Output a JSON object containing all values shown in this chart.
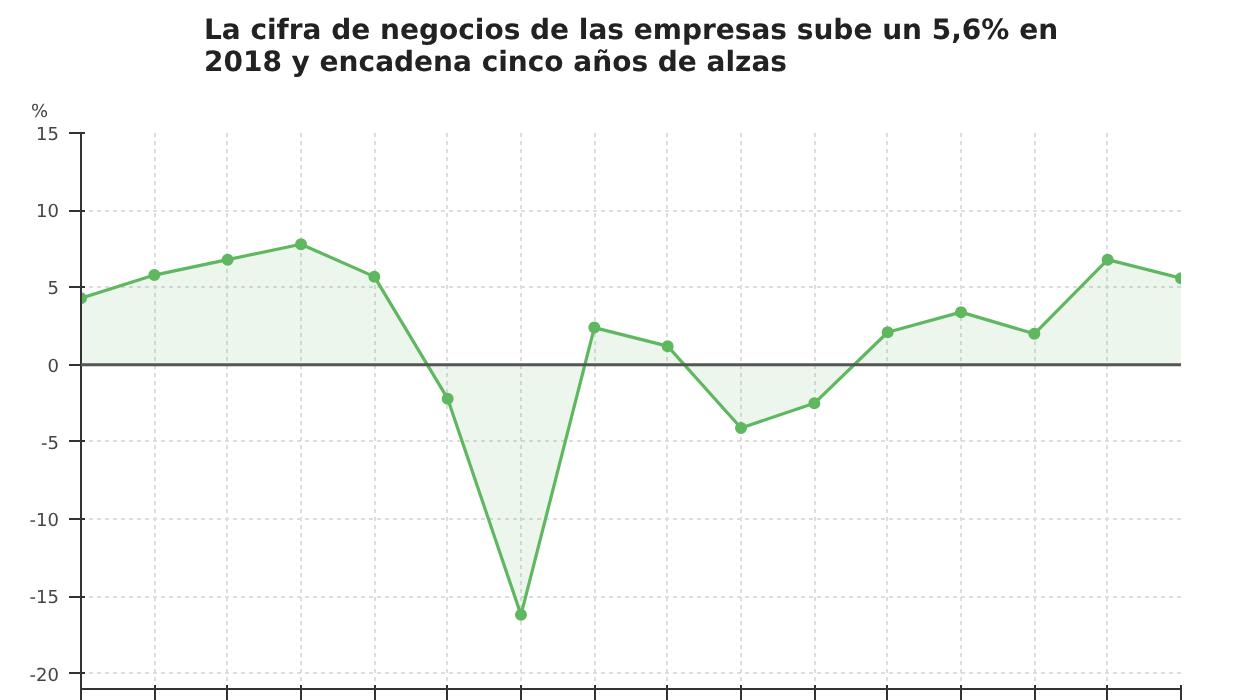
{
  "chart_data": {
    "type": "area",
    "title": "La cifra de negocios de las empresas sube un 5,6% en 2018 y encadena cinco años de alzas",
    "ylabel": "%",
    "categories": [
      null,
      null,
      null,
      null,
      null,
      null,
      null,
      null,
      null,
      null,
      null,
      null,
      null,
      null,
      null,
      null
    ],
    "series": [
      {
        "color": "#5fb760",
        "values": [
          4.3,
          5.8,
          6.8,
          7.8,
          5.7,
          -2.2,
          -16.2,
          2.4,
          1.2,
          -4.1,
          -2.5,
          2.1,
          3.4,
          2.0,
          6.8,
          5.6
        ]
      }
    ],
    "ylim": [
      -21,
      15
    ],
    "yticks": [
      -20,
      -15,
      -10,
      -5,
      0,
      5,
      10,
      15
    ],
    "ref_lines": [
      {
        "axis": "y",
        "value": 0,
        "color": "#555555"
      }
    ],
    "grid": true,
    "marker": "circle"
  }
}
